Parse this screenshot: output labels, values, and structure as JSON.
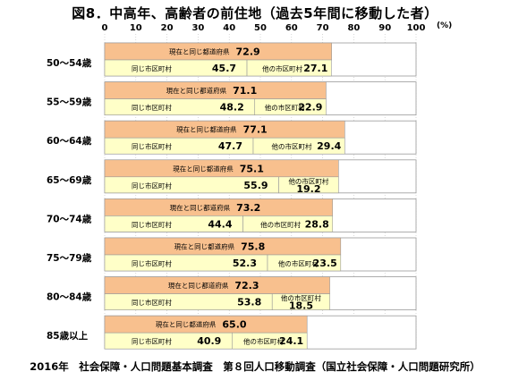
{
  "title": "図8．中高年、高齢者の前住地（過去5年間に移動した者）",
  "footer": "2016年　社会保障・人口問題基本調査　第８回人口移動調査（国立社会保障・人口問題研究所）",
  "colors": {
    "prefecture": "#F8C08E",
    "same_city": "#FFFFC8",
    "other_city": "#FFFFC8",
    "border": "#999999",
    "grid": "#bfbfbf"
  },
  "chart_data": {
    "type": "bar",
    "orientation": "horizontal",
    "unit": "(%)",
    "xlim": [
      0,
      100
    ],
    "ticks": [
      0,
      10,
      20,
      30,
      40,
      50,
      60,
      70,
      80,
      90,
      100
    ],
    "segment_labels": {
      "prefecture": "現在と同じ都道府県",
      "same_city": "同じ市区町村",
      "other_city": "他の市区町村"
    },
    "categories": [
      "50～54歳",
      "55～59歳",
      "60～64歳",
      "65～69歳",
      "70～74歳",
      "75～79歳",
      "80～84歳",
      "85歳以上"
    ],
    "series": [
      {
        "key": "prefecture",
        "name": "現在と同じ都道府県",
        "values": [
          72.9,
          71.1,
          77.1,
          75.1,
          73.2,
          75.8,
          72.3,
          65.0
        ]
      },
      {
        "key": "same_city",
        "name": "同じ市区町村",
        "values": [
          45.7,
          48.2,
          47.7,
          55.9,
          44.4,
          52.3,
          53.8,
          40.9
        ]
      },
      {
        "key": "other_city",
        "name": "他の市区町村",
        "values": [
          27.1,
          22.9,
          29.4,
          19.2,
          28.8,
          23.5,
          18.5,
          24.1
        ]
      }
    ]
  }
}
